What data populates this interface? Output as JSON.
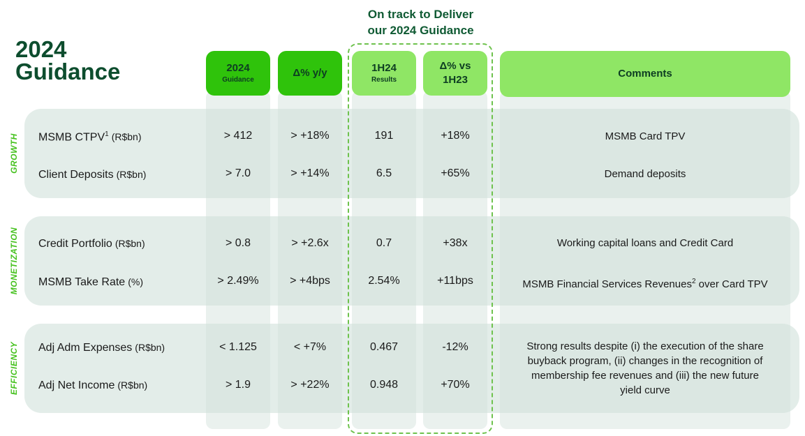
{
  "title_lines": [
    "2024",
    "Guidance"
  ],
  "callout_lines": [
    "On track to Deliver",
    "our 2024 Guidance"
  ],
  "headers": {
    "guidance": {
      "main": "2024",
      "sub": "Guidance"
    },
    "yoy": {
      "main": "Δ% y/y"
    },
    "results": {
      "main": "1H24",
      "sub": "Results"
    },
    "vs": {
      "main": "Δ% vs",
      "main2": "1H23"
    },
    "comments": {
      "main": "Comments"
    }
  },
  "sections": [
    "GROWTH",
    "MONETIZATION",
    "EFFICIENCY"
  ],
  "rows": [
    {
      "metric": "MSMB CTPV",
      "sup": "1",
      "unit": "(R$bn)",
      "guidance": "> 412",
      "yoy": "> +18%",
      "results": "191",
      "vs": "+18%"
    },
    {
      "metric": "Client Deposits",
      "sup": "",
      "unit": "(R$bn)",
      "guidance": "> 7.0",
      "yoy": "> +14%",
      "results": "6.5",
      "vs": "+65%"
    },
    {
      "metric": "Credit Portfolio",
      "sup": "",
      "unit": "(R$bn)",
      "guidance": "> 0.8",
      "yoy": "> +2.6x",
      "results": "0.7",
      "vs": "+38x"
    },
    {
      "metric": "MSMB Take Rate",
      "sup": "",
      "unit": "(%)",
      "guidance": "> 2.49%",
      "yoy": "> +4bps",
      "results": "2.54%",
      "vs": "+11bps"
    },
    {
      "metric": "Adj Adm Expenses",
      "sup": "",
      "unit": "(R$bn)",
      "guidance": "< 1.125",
      "yoy": "< +7%",
      "results": "0.467",
      "vs": "-12%"
    },
    {
      "metric": "Adj Net Income",
      "sup": "",
      "unit": "(R$bn)",
      "guidance": "> 1.9",
      "yoy": "> +22%",
      "results": "0.948",
      "vs": "+70%"
    }
  ],
  "comments": {
    "growth_1": "MSMB Card TPV",
    "growth_2": "Demand deposits",
    "monetization_1": "Working capital loans and Credit Card",
    "monetization_2_pre": "MSMB Financial Services Revenues",
    "monetization_2_sup": "2",
    "monetization_2_post": " over Card TPV",
    "efficiency_lines": [
      "Strong results despite (i) the execution of the share",
      "buyback program, (ii) changes in the recognition of",
      "membership fee revenues and (iii) the new future",
      "yield curve"
    ]
  }
}
